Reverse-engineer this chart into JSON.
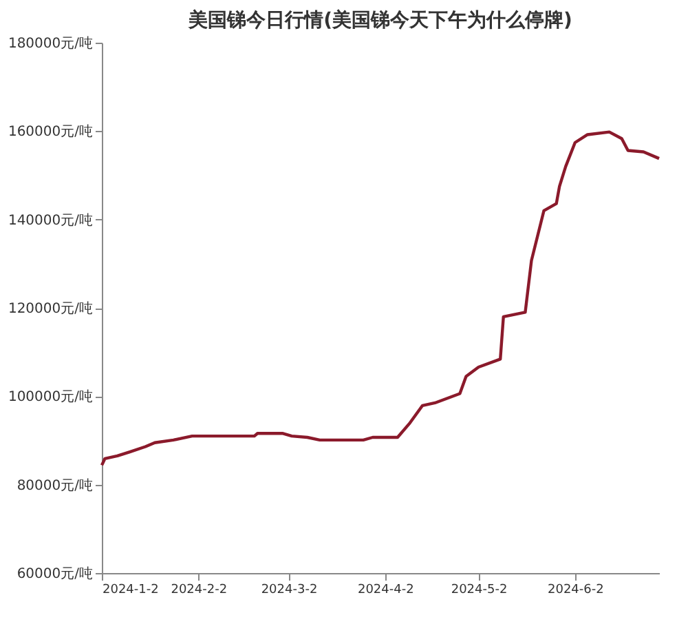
{
  "chart_data": {
    "type": "line",
    "title": "美国锑今日行情(美国锑今天下午为什么停牌)",
    "x": [
      "2024-01-02",
      "2024-01-03",
      "2024-01-07",
      "2024-01-11",
      "2024-01-16",
      "2024-01-19",
      "2024-01-25",
      "2024-01-31",
      "2024-02-20",
      "2024-02-21",
      "2024-02-29",
      "2024-03-03",
      "2024-03-08",
      "2024-03-12",
      "2024-03-26",
      "2024-03-29",
      "2024-04-06",
      "2024-04-10",
      "2024-04-14",
      "2024-04-18",
      "2024-04-26",
      "2024-04-28",
      "2024-05-02",
      "2024-05-09",
      "2024-05-10",
      "2024-05-17",
      "2024-05-19",
      "2024-05-23",
      "2024-05-27",
      "2024-05-28",
      "2024-05-30",
      "2024-06-02",
      "2024-06-06",
      "2024-06-13",
      "2024-06-17",
      "2024-06-19",
      "2024-06-24",
      "2024-06-29"
    ],
    "series": [
      {
        "color": "#8b1a2b",
        "values": [
          84400,
          85900,
          86500,
          87400,
          88600,
          89500,
          90100,
          91000,
          91000,
          91600,
          91600,
          91000,
          90700,
          90100,
          90100,
          90700,
          90700,
          94000,
          97900,
          98500,
          100600,
          104500,
          106600,
          108400,
          118000,
          119000,
          130700,
          142000,
          143600,
          147500,
          152000,
          157400,
          159200,
          159800,
          158300,
          155600,
          155300,
          153800
        ]
      }
    ],
    "xlim": [
      "2024-01-02",
      "2024-06-29"
    ],
    "xticks": [
      {
        "value": "2024-01-02",
        "label": "2024-1-2"
      },
      {
        "value": "2024-02-02",
        "label": "2024-2-2"
      },
      {
        "value": "2024-03-02",
        "label": "2024-3-2"
      },
      {
        "value": "2024-04-02",
        "label": "2024-4-2"
      },
      {
        "value": "2024-05-02",
        "label": "2024-5-2"
      },
      {
        "value": "2024-06-02",
        "label": "2024-6-2"
      }
    ],
    "ylim": [
      60000,
      180000
    ],
    "yticks": [
      {
        "value": 60000,
        "label": "60000元/吨"
      },
      {
        "value": 80000,
        "label": "80000元/吨"
      },
      {
        "value": 100000,
        "label": "100000元/吨"
      },
      {
        "value": 120000,
        "label": "120000元/吨"
      },
      {
        "value": 140000,
        "label": "140000元/吨"
      },
      {
        "value": 160000,
        "label": "160000元/吨"
      },
      {
        "value": 180000,
        "label": "180000元/吨"
      }
    ],
    "grid": false,
    "marker": "none",
    "line_style": "solid"
  }
}
